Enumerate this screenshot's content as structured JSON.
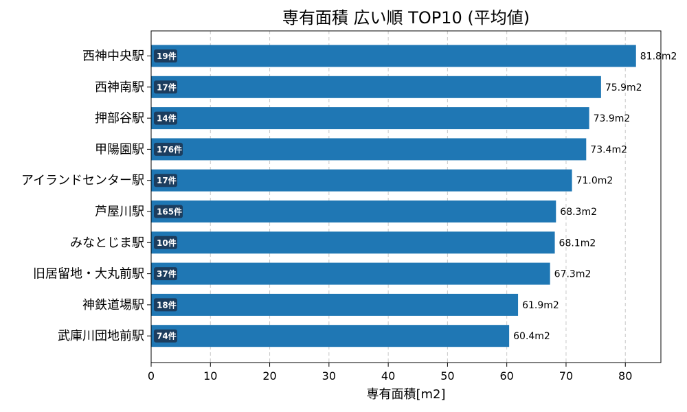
{
  "chart_data": {
    "type": "bar",
    "orientation": "horizontal",
    "title": "専有面積 広い順 TOP10 (平均値)",
    "xlabel": "専有面積[m2]",
    "ylabel": "",
    "xlim": [
      0,
      86
    ],
    "xticks": [
      0,
      10,
      20,
      30,
      40,
      50,
      60,
      70,
      80
    ],
    "grid": "x-dashed",
    "bar_color": "#1f77b4",
    "badge_color": "#1c3d5e",
    "categories": [
      "西神中央駅",
      "西神南駅",
      "押部谷駅",
      "甲陽園駅",
      "アイランドセンター駅",
      "芦屋川駅",
      "みなとじま駅",
      "旧居留地・大丸前駅",
      "神鉄道場駅",
      "武庫川団地前駅"
    ],
    "values": [
      81.8,
      75.9,
      73.9,
      73.4,
      71.0,
      68.3,
      68.1,
      67.3,
      61.9,
      60.4
    ],
    "value_labels": [
      "81.8m2",
      "75.9m2",
      "73.9m2",
      "73.4m2",
      "71.0m2",
      "68.3m2",
      "68.1m2",
      "67.3m2",
      "61.9m2",
      "60.4m2"
    ],
    "counts": [
      "19件",
      "17件",
      "14件",
      "176件",
      "17件",
      "165件",
      "10件",
      "37件",
      "18件",
      "74件"
    ]
  }
}
